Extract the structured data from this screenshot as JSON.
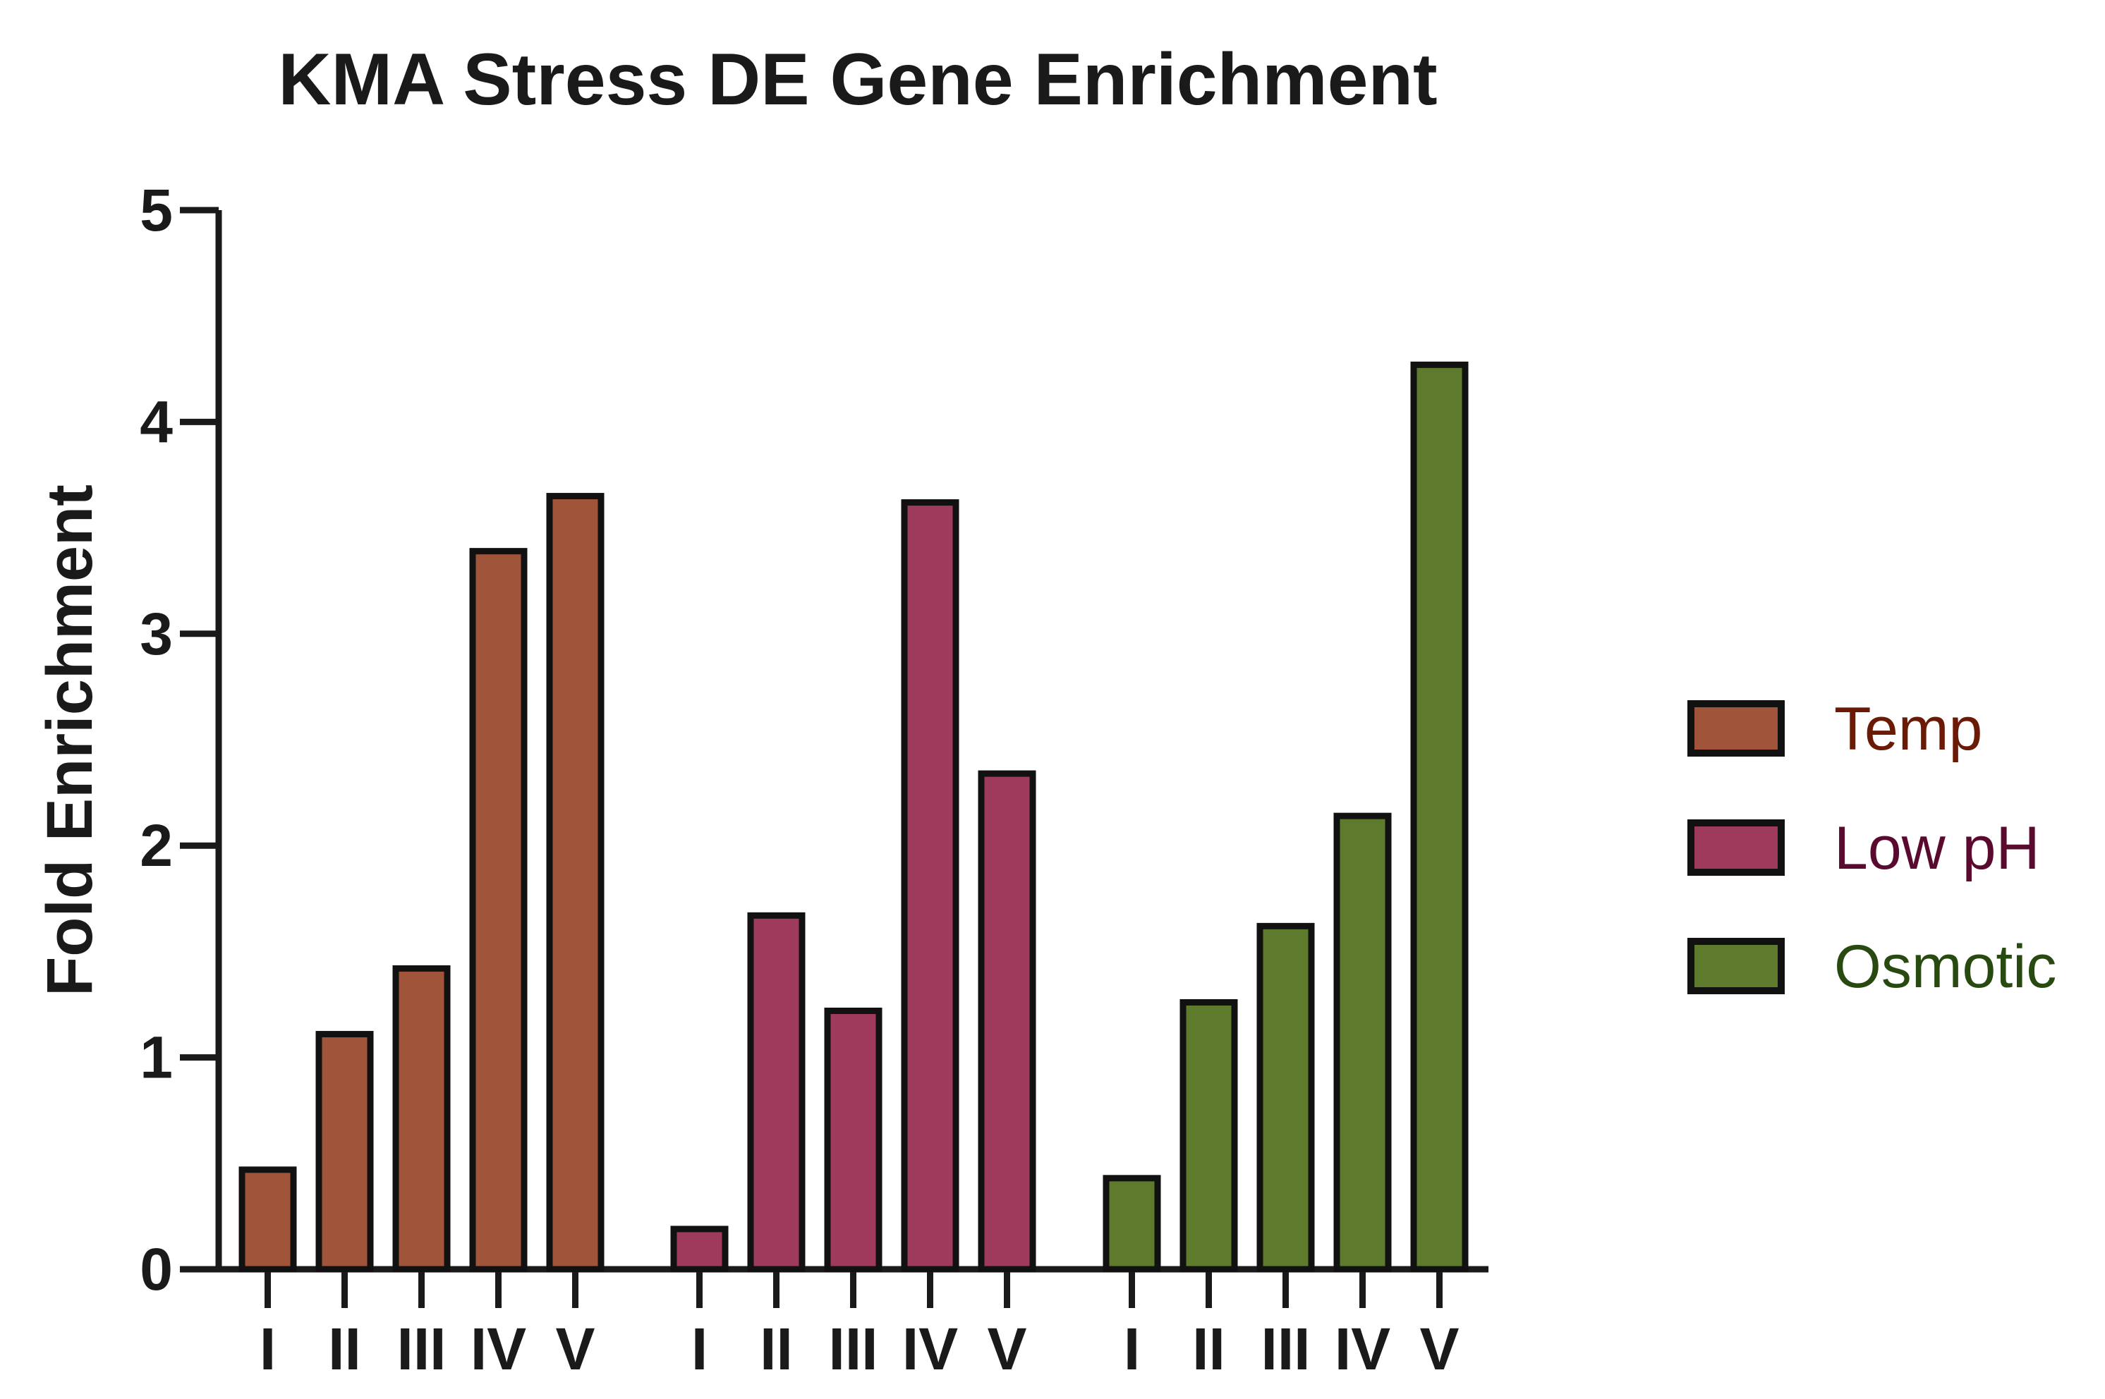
{
  "chart_data": {
    "type": "bar",
    "title": "KMA Stress DE Gene Enrichment",
    "ylabel": "Fold Enrichment",
    "xlabel": "",
    "ylim": [
      0,
      5
    ],
    "yticks": [
      "0",
      "1",
      "2",
      "3",
      "4",
      "5"
    ],
    "categories": [
      "I",
      "II",
      "III",
      "IV",
      "V"
    ],
    "series": [
      {
        "name": "Temp",
        "color": "#A0553A",
        "label_color": "#6B1A06",
        "values": [
          0.47,
          1.11,
          1.42,
          3.39,
          3.65
        ]
      },
      {
        "name": "Low pH",
        "color": "#9E3A5C",
        "label_color": "#5A0A2E",
        "values": [
          0.19,
          1.67,
          1.22,
          3.62,
          2.34
        ]
      },
      {
        "name": "Osmotic",
        "color": "#5E7A2C",
        "label_color": "#284A10",
        "values": [
          0.43,
          1.26,
          1.62,
          2.14,
          4.27
        ]
      }
    ],
    "legend_position": "right",
    "grid": false
  }
}
